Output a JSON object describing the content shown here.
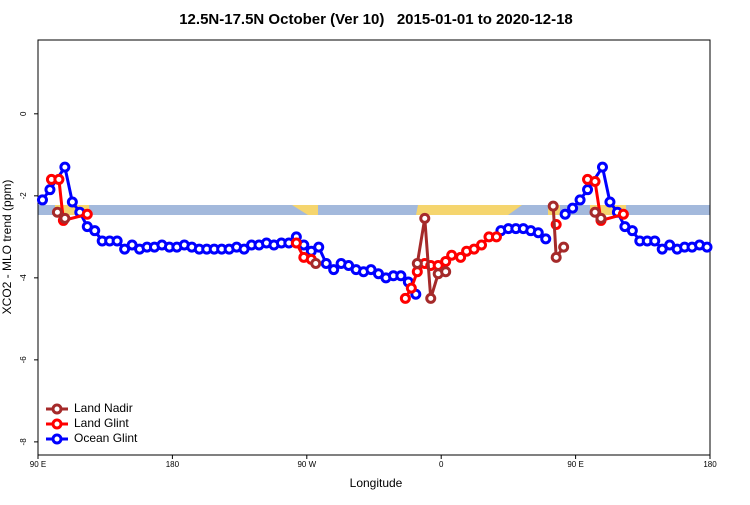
{
  "chart_data": {
    "type": "line",
    "title": "12.5N-17.5N October (Ver 10)   2015-01-01 to 2020-12-18",
    "xlabel": "Longitude",
    "ylabel": "XCO2 - MLO trend (ppm)",
    "xlim": [
      90,
      540
    ],
    "ylim": [
      -8.32,
      1.8
    ],
    "xticks": [
      {
        "value": 90,
        "label": "90 E"
      },
      180,
      {
        "value": 270,
        "label": "90 W"
      },
      {
        "value": 360,
        "label": "0"
      },
      {
        "value": 450,
        "label": "90 E"
      },
      {
        "value": 540,
        "label": "180"
      }
    ],
    "yticks": [
      -8,
      -6,
      -4,
      -2,
      0
    ],
    "legend": "bottomleft",
    "series": [
      {
        "name": "Land Nadir",
        "color": "#a52a2a",
        "x": [
          103,
          108,
          null,
          276,
          null,
          344,
          349,
          353,
          358,
          363,
          null,
          435,
          437,
          442,
          null,
          463,
          467
        ],
        "values": [
          -2.4,
          -2.55,
          null,
          -3.65,
          null,
          -3.65,
          -2.55,
          -4.5,
          -3.9,
          -3.85,
          null,
          -2.25,
          -3.5,
          -3.25,
          null,
          -2.4,
          -2.55
        ]
      },
      {
        "name": "Land Glint",
        "color": "#ff0000",
        "x": [
          99,
          104,
          107,
          123,
          null,
          263,
          268,
          273,
          null,
          336,
          340,
          344,
          349,
          353,
          358,
          363,
          367,
          373,
          377,
          382,
          387,
          392,
          397,
          null,
          437,
          null,
          458,
          463,
          467,
          482
        ],
        "values": [
          -1.6,
          -1.6,
          -2.6,
          -2.45,
          null,
          -3.15,
          -3.5,
          -3.55,
          null,
          -4.5,
          -4.25,
          -3.85,
          -3.65,
          -3.7,
          -3.7,
          -3.6,
          -3.45,
          -3.5,
          -3.35,
          -3.3,
          -3.2,
          -3.0,
          -3.0,
          null,
          -2.7,
          null,
          -1.6,
          -1.65,
          -2.6,
          -2.45
        ]
      },
      {
        "name": "Ocean Glint",
        "color": "#0000ff",
        "x": [
          93,
          98,
          108,
          113,
          118,
          123,
          128,
          133,
          138,
          143,
          148,
          153,
          158,
          163,
          168,
          173,
          178,
          183,
          188,
          193,
          198,
          203,
          208,
          213,
          218,
          223,
          228,
          233,
          238,
          243,
          248,
          253,
          258,
          263,
          268,
          273,
          278,
          283,
          288,
          293,
          298,
          303,
          308,
          313,
          318,
          323,
          328,
          333,
          338,
          343,
          null,
          400,
          405,
          410,
          415,
          420,
          425,
          430,
          null,
          443,
          448,
          453,
          458,
          468,
          473,
          478,
          483,
          488,
          493,
          498,
          503,
          508,
          513,
          518,
          523,
          528,
          533,
          538
        ],
        "values": [
          -2.1,
          -1.85,
          -1.3,
          -2.15,
          -2.4,
          -2.75,
          -2.85,
          -3.1,
          -3.1,
          -3.1,
          -3.3,
          -3.2,
          -3.3,
          -3.25,
          -3.25,
          -3.2,
          -3.25,
          -3.25,
          -3.2,
          -3.25,
          -3.3,
          -3.3,
          -3.3,
          -3.3,
          -3.3,
          -3.25,
          -3.3,
          -3.2,
          -3.2,
          -3.15,
          -3.2,
          -3.15,
          -3.15,
          -3.0,
          -3.2,
          -3.35,
          -3.25,
          -3.65,
          -3.8,
          -3.65,
          -3.7,
          -3.8,
          -3.85,
          -3.8,
          -3.9,
          -4.0,
          -3.95,
          -3.95,
          -4.1,
          -4.4,
          null,
          -2.85,
          -2.8,
          -2.8,
          -2.8,
          -2.85,
          -2.9,
          -3.05,
          null,
          -2.45,
          -2.3,
          -2.1,
          -1.85,
          -1.3,
          -2.15,
          -2.4,
          -2.75,
          -2.85,
          -3.1,
          -3.1,
          -3.1,
          -3.3,
          -3.2,
          -3.3,
          -3.25,
          -3.25,
          -3.2,
          -3.25
        ]
      }
    ]
  }
}
